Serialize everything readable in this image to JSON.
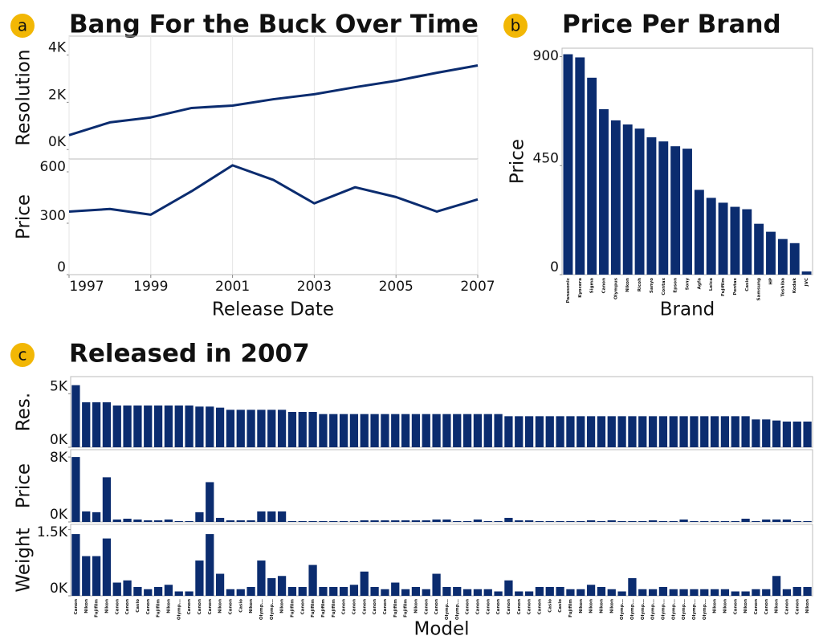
{
  "chart_data": [
    {
      "type": "line",
      "label": "a",
      "title": "Bang For the Buck Over Time",
      "color": "#0b2c6f",
      "x": [
        1997,
        1998,
        1999,
        2000,
        2001,
        2002,
        2003,
        2004,
        2005,
        2006,
        2007
      ],
      "xlim": [
        1997,
        2007
      ],
      "xticks": [
        1997,
        1999,
        2001,
        2003,
        2005,
        2007
      ],
      "xlabel": "Release Date",
      "grid": true,
      "panels": [
        {
          "ylabel": "Resolution",
          "values": [
            610,
            1150,
            1360,
            1760,
            1860,
            2130,
            2340,
            2640,
            2910,
            3250,
            3560
          ],
          "ylim": [
            -400,
            4800
          ],
          "yticks": [
            {
              "value": 0,
              "label": "0K"
            },
            {
              "value": 2000,
              "label": "2K"
            },
            {
              "value": 4000,
              "label": "4K"
            }
          ]
        },
        {
          "ylabel": "Price",
          "values": [
            368,
            383,
            350,
            487,
            638,
            553,
            416,
            510,
            453,
            368,
            439
          ],
          "ylim": [
            0,
            675
          ],
          "yticks": [
            0,
            300,
            600
          ]
        }
      ]
    },
    {
      "type": "bar",
      "label": "b",
      "title": "Price Per Brand",
      "color": "#0b2c6f",
      "xlabel": "Brand",
      "categories": [
        "Panasonic",
        "Kyocera",
        "Sigma",
        "Canon",
        "Olympus",
        "Nikon",
        "Ricoh",
        "Sanyo",
        "Contax",
        "Epson",
        "Sony",
        "Agfa",
        "Leica",
        "Fujifilm",
        "Pentax",
        "Casio",
        "Samsung",
        "HP",
        "Toshiba",
        "Kodak",
        "JVC"
      ],
      "panels": [
        {
          "ylabel": "Price",
          "values": [
            910,
            897,
            813,
            683,
            637,
            620,
            603,
            567,
            550,
            530,
            520,
            350,
            317,
            297,
            280,
            270,
            210,
            177,
            147,
            130,
            13
          ],
          "ylim": [
            0,
            935
          ],
          "yticks": [
            0,
            450,
            900
          ]
        }
      ]
    },
    {
      "type": "bar",
      "label": "c",
      "title": "Released in 2007",
      "color": "#0b2c6f",
      "xlabel": "Model",
      "categories": [
        "Canon",
        "Nikon",
        "Fujifilm",
        "Nikon",
        "Canon",
        "Canon",
        "Casio",
        "Canon",
        "Fujifilm",
        "Nikon",
        "Olymp...",
        "Canon",
        "Canon",
        "Canon",
        "Nikon",
        "Canon",
        "Casio",
        "Nikon",
        "Olymp...",
        "Olymp...",
        "Nikon",
        "Fujifilm",
        "Canon",
        "Fujifilm",
        "Fujifilm",
        "Fujifilm",
        "Canon",
        "Canon",
        "Canon",
        "Canon",
        "Canon",
        "Fujifilm",
        "Fujifilm",
        "Nikon",
        "Canon",
        "Canon",
        "Olymp...",
        "Olymp...",
        "Canon",
        "Canon",
        "Canon",
        "Canon",
        "Canon",
        "Canon",
        "Canon",
        "Canon",
        "Casio",
        "Casio",
        "Fujifilm",
        "Nikon",
        "Nikon",
        "Nikon",
        "Nikon",
        "Olymp...",
        "Olymp...",
        "Olymp...",
        "Olymp...",
        "Olymp...",
        "Olymp...",
        "Olymp...",
        "Olymp...",
        "Olymp...",
        "Nikon",
        "Nikon",
        "Canon",
        "Nikon",
        "Canon",
        "Canon",
        "Nikon",
        "Canon",
        "Canon",
        "Nikon"
      ],
      "panels": [
        {
          "ylabel": "Res.",
          "ylim": [
            0,
            6600
          ],
          "yticks": [
            {
              "value": 0,
              "label": "0K"
            },
            {
              "value": 5000,
              "label": "5K"
            }
          ],
          "values": [
            5800,
            4200,
            4200,
            4200,
            3900,
            3900,
            3900,
            3900,
            3900,
            3900,
            3900,
            3900,
            3800,
            3800,
            3700,
            3500,
            3500,
            3500,
            3500,
            3500,
            3500,
            3300,
            3300,
            3300,
            3100,
            3100,
            3100,
            3100,
            3100,
            3100,
            3100,
            3100,
            3100,
            3100,
            3100,
            3100,
            3100,
            3100,
            3100,
            3100,
            3100,
            3100,
            2900,
            2900,
            2900,
            2900,
            2900,
            2900,
            2900,
            2900,
            2900,
            2900,
            2900,
            2900,
            2900,
            2900,
            2900,
            2900,
            2900,
            2900,
            2900,
            2900,
            2900,
            2900,
            2900,
            2900,
            2600,
            2600,
            2500,
            2400,
            2400,
            2400
          ]
        },
        {
          "ylabel": "Price",
          "ylim": [
            0,
            8900
          ],
          "yticks": [
            {
              "value": 0,
              "label": "0K"
            },
            {
              "value": 8000,
              "label": "8K"
            }
          ],
          "values": [
            8000,
            1300,
            1200,
            5500,
            300,
            400,
            300,
            200,
            200,
            300,
            100,
            100,
            1200,
            4900,
            500,
            200,
            200,
            200,
            1300,
            1300,
            1300,
            100,
            100,
            100,
            100,
            100,
            100,
            100,
            200,
            200,
            200,
            200,
            200,
            200,
            200,
            300,
            300,
            100,
            100,
            300,
            100,
            100,
            500,
            200,
            200,
            100,
            100,
            100,
            100,
            100,
            200,
            100,
            200,
            100,
            100,
            100,
            200,
            100,
            100,
            300,
            100,
            100,
            100,
            100,
            100,
            400,
            100,
            300,
            300,
            300,
            100,
            100
          ]
        },
        {
          "ylabel": "Weight",
          "ylim": [
            0,
            1620
          ],
          "yticks": [
            {
              "value": 0,
              "label": "0K"
            },
            {
              "value": 1500,
              "label": "1.5K"
            }
          ],
          "values": [
            1400,
            900,
            900,
            1300,
            300,
            350,
            200,
            150,
            200,
            250,
            100,
            100,
            800,
            1400,
            500,
            150,
            150,
            200,
            800,
            400,
            450,
            200,
            200,
            700,
            200,
            200,
            200,
            250,
            550,
            200,
            150,
            300,
            150,
            200,
            150,
            500,
            200,
            200,
            150,
            150,
            150,
            100,
            350,
            100,
            100,
            200,
            200,
            200,
            150,
            150,
            250,
            200,
            150,
            100,
            400,
            150,
            150,
            200,
            150,
            150,
            150,
            150,
            150,
            150,
            100,
            100,
            150,
            150,
            450,
            150,
            200,
            200
          ]
        }
      ]
    }
  ]
}
